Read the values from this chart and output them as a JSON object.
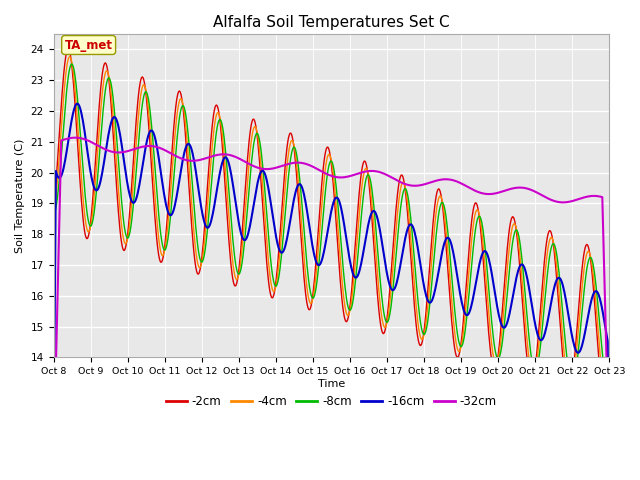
{
  "title": "Alfalfa Soil Temperatures Set C",
  "ylabel": "Soil Temperature (C)",
  "xlabel": "Time",
  "ylim": [
    14.0,
    24.5
  ],
  "yticks": [
    14.0,
    15.0,
    16.0,
    17.0,
    18.0,
    19.0,
    20.0,
    21.0,
    22.0,
    23.0,
    24.0
  ],
  "x_tick_labels": [
    "Oct 8",
    "Oct 9",
    "Oct 10",
    "Oct 11",
    "Oct 12",
    "Oct 13",
    "Oct 14",
    "Oct 15",
    "Oct 16",
    "Oct 17",
    "Oct 18",
    "Oct 19",
    "Oct 20",
    "Oct 21",
    "Oct 22",
    "Oct 23"
  ],
  "series_colors": {
    "-2cm": "#dd0000",
    "-4cm": "#ff8800",
    "-8cm": "#00bb00",
    "-16cm": "#0000cc",
    "-32cm": "#cc00cc"
  },
  "series_lw": {
    "-2cm": 1.0,
    "-4cm": 1.0,
    "-8cm": 1.0,
    "-16cm": 1.5,
    "-32cm": 1.5
  },
  "legend_order": [
    "-2cm",
    "-4cm",
    "-8cm",
    "-16cm",
    "-32cm"
  ],
  "ta_met_label": "TA_met",
  "ta_met_color": "#cc0000",
  "plot_bg_color": "#e8e8e8",
  "fig_bg_color": "#ffffff",
  "n_days": 15,
  "pts_per_day": 48
}
